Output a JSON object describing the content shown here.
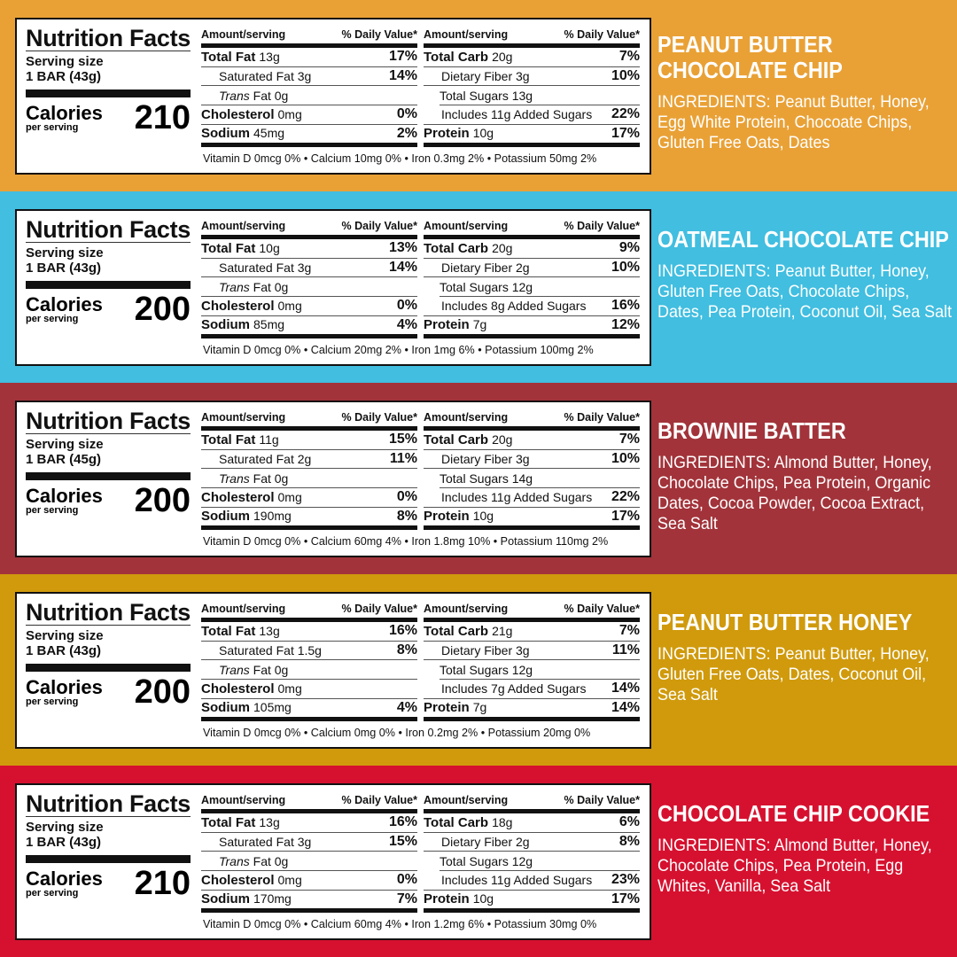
{
  "labels": {
    "title": "Nutrition Facts",
    "serving_label": "Serving size",
    "calories_label": "Calories",
    "per_serving": "per serving",
    "amount_hdr": "Amount/serving",
    "dv_hdr": "% Daily Value*"
  },
  "products": [
    {
      "name": "PEANUT BUTTER\nCHOCOLATE CHIP",
      "color": "#E9A136",
      "serving": "1 BAR (43g)",
      "calories": "210",
      "left": [
        {
          "n": "Total Fat",
          "a": "13g",
          "dv": "17%",
          "t": "bold"
        },
        {
          "n": "Saturated Fat 3g",
          "a": "",
          "dv": "14%",
          "t": "i1"
        },
        {
          "n": "Trans",
          "a": " Fat 0g",
          "dv": "",
          "t": "trans"
        },
        {
          "n": "Cholesterol",
          "a": "0mg",
          "dv": "0%",
          "t": "bold"
        },
        {
          "n": "Sodium",
          "a": "45mg",
          "dv": "2%",
          "t": "bold"
        }
      ],
      "right": [
        {
          "n": "Total Carb",
          "a": "20g",
          "dv": "7%",
          "t": "bold"
        },
        {
          "n": "Dietary Fiber 3g",
          "a": "",
          "dv": "10%",
          "t": "i1"
        },
        {
          "n": "Total Sugars 13g",
          "a": "",
          "dv": "",
          "t": "i1"
        },
        {
          "n": "Includes 11g Added Sugars",
          "a": "",
          "dv": "22%",
          "t": "i2"
        },
        {
          "n": "Protein",
          "a": "10g",
          "dv": "17%",
          "t": "bold"
        }
      ],
      "footer": "Vitamin D 0mcg 0% • Calcium 10mg 0% • Iron 0.3mg 2% • Potassium 50mg 2%",
      "ingredients": "INGREDIENTS: Peanut Butter, Honey, Egg White Protein, Chocoate Chips, Gluten Free Oats, Dates"
    },
    {
      "name": "OATMEAL CHOCOLATE CHIP",
      "color": "#41BEE0",
      "serving": "1 BAR (43g)",
      "calories": "200",
      "left": [
        {
          "n": "Total Fat",
          "a": "10g",
          "dv": "13%",
          "t": "bold"
        },
        {
          "n": "Saturated Fat 3g",
          "a": "",
          "dv": "14%",
          "t": "i1"
        },
        {
          "n": "Trans",
          "a": " Fat 0g",
          "dv": "",
          "t": "trans"
        },
        {
          "n": "Cholesterol",
          "a": "0mg",
          "dv": "0%",
          "t": "bold"
        },
        {
          "n": "Sodium",
          "a": "85mg",
          "dv": "4%",
          "t": "bold"
        }
      ],
      "right": [
        {
          "n": "Total Carb",
          "a": "20g",
          "dv": "9%",
          "t": "bold"
        },
        {
          "n": "Dietary Fiber 2g",
          "a": "",
          "dv": "10%",
          "t": "i1"
        },
        {
          "n": "Total Sugars 12g",
          "a": "",
          "dv": "",
          "t": "i1"
        },
        {
          "n": "Includes 8g Added Sugars",
          "a": "",
          "dv": "16%",
          "t": "i2"
        },
        {
          "n": "Protein",
          "a": "7g",
          "dv": "12%",
          "t": "bold"
        }
      ],
      "footer": "Vitamin D 0mcg 0% • Calcium 20mg 2% • Iron 1mg 6% • Potassium 100mg 2%",
      "ingredients": "INGREDIENTS: Peanut Butter, Honey, Gluten Free Oats, Chocolate Chips, Dates, Pea Protein, Coconut Oil, Sea Salt"
    },
    {
      "name": "BROWNIE BATTER",
      "color": "#A2333A",
      "serving": "1 BAR (45g)",
      "calories": "200",
      "left": [
        {
          "n": "Total Fat",
          "a": "11g",
          "dv": "15%",
          "t": "bold"
        },
        {
          "n": "Saturated Fat 2g",
          "a": "",
          "dv": "11%",
          "t": "i1"
        },
        {
          "n": "Trans",
          "a": " Fat 0g",
          "dv": "",
          "t": "trans"
        },
        {
          "n": "Cholesterol",
          "a": "0mg",
          "dv": "0%",
          "t": "bold"
        },
        {
          "n": "Sodium",
          "a": "190mg",
          "dv": "8%",
          "t": "bold"
        }
      ],
      "right": [
        {
          "n": "Total Carb",
          "a": "20g",
          "dv": "7%",
          "t": "bold"
        },
        {
          "n": "Dietary Fiber 3g",
          "a": "",
          "dv": "10%",
          "t": "i1"
        },
        {
          "n": "Total Sugars 14g",
          "a": "",
          "dv": "",
          "t": "i1"
        },
        {
          "n": "Includes 11g Added Sugars",
          "a": "",
          "dv": "22%",
          "t": "i2"
        },
        {
          "n": "Protein",
          "a": "10g",
          "dv": "17%",
          "t": "bold"
        }
      ],
      "footer": "Vitamin D 0mcg 0% • Calcium 60mg 4% • Iron 1.8mg 10% • Potassium 110mg 2%",
      "ingredients": "INGREDIENTS: Almond Butter, Honey, Chocolate Chips, Pea Protein, Organic Dates, Cocoa Powder, Cocoa Extract, Sea Salt"
    },
    {
      "name": "PEANUT BUTTER HONEY",
      "color": "#D09A0C",
      "serving": "1 BAR (43g)",
      "calories": "200",
      "left": [
        {
          "n": "Total Fat",
          "a": "13g",
          "dv": "16%",
          "t": "bold"
        },
        {
          "n": "Saturated Fat 1.5g",
          "a": "",
          "dv": "8%",
          "t": "i1"
        },
        {
          "n": "Trans",
          "a": " Fat 0g",
          "dv": "",
          "t": "trans"
        },
        {
          "n": "Cholesterol",
          "a": "0mg",
          "dv": "",
          "t": "bold"
        },
        {
          "n": "Sodium",
          "a": "105mg",
          "dv": "4%",
          "t": "bold"
        }
      ],
      "right": [
        {
          "n": "Total Carb",
          "a": "21g",
          "dv": "7%",
          "t": "bold"
        },
        {
          "n": "Dietary Fiber 3g",
          "a": "",
          "dv": "11%",
          "t": "i1"
        },
        {
          "n": "Total Sugars 12g",
          "a": "",
          "dv": "",
          "t": "i1"
        },
        {
          "n": "Includes 7g Added Sugars",
          "a": "",
          "dv": "14%",
          "t": "i2"
        },
        {
          "n": "Protein",
          "a": "7g",
          "dv": "14%",
          "t": "bold"
        }
      ],
      "footer": "Vitamin D 0mcg 0% • Calcium 0mg 0% • Iron 0.2mg 2% • Potassium 20mg 0%",
      "ingredients": "INGREDIENTS: Peanut Butter, Honey, Gluten Free Oats, Dates, Coconut Oil, Sea Salt"
    },
    {
      "name": "CHOCOLATE CHIP COOKIE",
      "color": "#D6112F",
      "serving": "1 BAR (43g)",
      "calories": "210",
      "left": [
        {
          "n": "Total Fat",
          "a": "13g",
          "dv": "16%",
          "t": "bold"
        },
        {
          "n": "Saturated Fat 3g",
          "a": "",
          "dv": "15%",
          "t": "i1"
        },
        {
          "n": "Trans",
          "a": " Fat 0g",
          "dv": "",
          "t": "trans"
        },
        {
          "n": "Cholesterol",
          "a": "0mg",
          "dv": "0%",
          "t": "bold"
        },
        {
          "n": "Sodium",
          "a": "170mg",
          "dv": "7%",
          "t": "bold"
        }
      ],
      "right": [
        {
          "n": "Total Carb",
          "a": "18g",
          "dv": "6%",
          "t": "bold"
        },
        {
          "n": "Dietary Fiber 2g",
          "a": "",
          "dv": "8%",
          "t": "i1"
        },
        {
          "n": "Total Sugars 12g",
          "a": "",
          "dv": "",
          "t": "i1"
        },
        {
          "n": "Includes 11g Added Sugars",
          "a": "",
          "dv": "23%",
          "t": "i2"
        },
        {
          "n": "Protein",
          "a": "10g",
          "dv": "17%",
          "t": "bold"
        }
      ],
      "footer": "Vitamin D 0mcg 0% • Calcium 60mg 4% • Iron 1.2mg 6% • Potassium 30mg 0%",
      "ingredients": "INGREDIENTS: Almond Butter, Honey, Chocolate Chips, Pea Protein, Egg Whites, Vanilla, Sea Salt"
    }
  ]
}
